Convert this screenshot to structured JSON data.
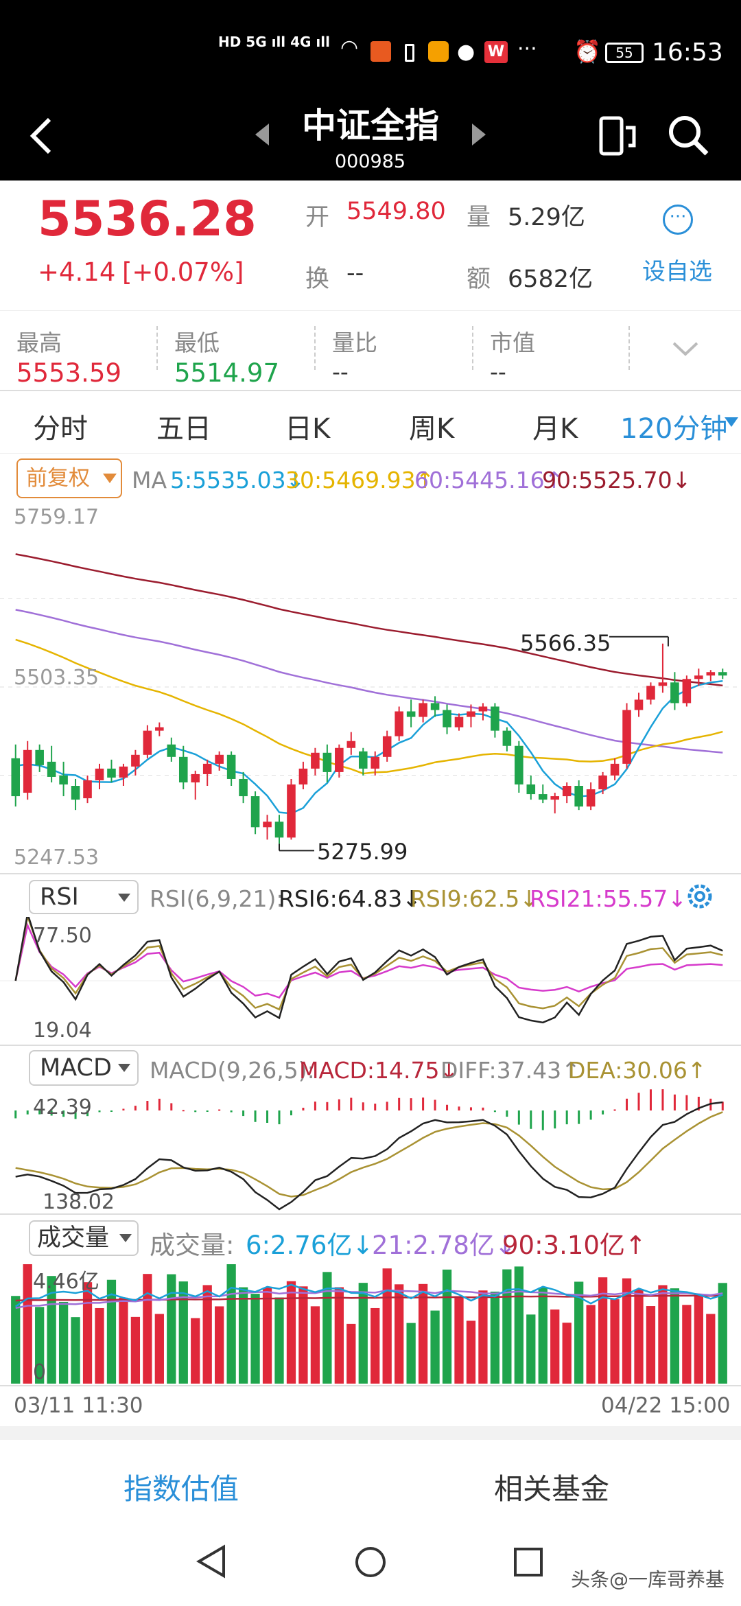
{
  "status_bar": {
    "network": "HD 5G 4G",
    "battery": "55",
    "time": "16:53"
  },
  "header": {
    "title": "中证全指",
    "code": "000985"
  },
  "quote": {
    "price": "5536.28",
    "change": "+4.14",
    "change_pct": "[+0.07%]",
    "open_label": "开",
    "open": "5549.80",
    "volume_label": "量",
    "volume": "5.29亿",
    "turnover_label": "换",
    "turnover": "--",
    "amount_label": "额",
    "amount": "6582亿",
    "watch_label": "设自选"
  },
  "stats": {
    "high_label": "最高",
    "high": "5553.59",
    "low_label": "最低",
    "low": "5514.97",
    "ratio_label": "量比",
    "ratio": "--",
    "mcap_label": "市值",
    "mcap": "--"
  },
  "tabs": [
    "分时",
    "五日",
    "日K",
    "周K",
    "月K",
    "120分钟"
  ],
  "ma": {
    "adjust": "前复权",
    "label": "MA",
    "ma5": "5:5535.03↓",
    "ma30": "30:5469.93↑",
    "ma60": "60:5445.16↑",
    "ma90": "90:5525.70↓",
    "axis_top": "5759.17",
    "axis_mid": "5503.35",
    "axis_bot": "5247.53",
    "annot_high": "5566.35",
    "annot_low": "5275.99"
  },
  "rsi": {
    "selector": "RSI",
    "params": "RSI(6,9,21):",
    "rsi6": "RSI6:64.83↓",
    "rsi9": "RSI9:62.5↓",
    "rsi21": "RSI21:55.57↓",
    "axis_top": "77.50",
    "axis_bot": "19.04"
  },
  "macd": {
    "selector": "MACD",
    "params": "MACD(9,26,5):",
    "macd": "MACD:14.75↓",
    "diff": "DIFF:37.43↑",
    "dea": "DEA:30.06↑",
    "axis_top": "42.39",
    "axis_bot": "138.02"
  },
  "vol": {
    "selector": "成交量",
    "label": "成交量:",
    "v6": "6:2.76亿↓",
    "v21": "21:2.78亿↓",
    "v90": "90:3.10亿↑",
    "axis_top": "4.46亿",
    "axis_bot": "0"
  },
  "time_axis": {
    "start": "03/11 11:30",
    "end": "04/22 15:00"
  },
  "bottom_actions": {
    "valuation": "指数估值",
    "funds": "相关基金"
  },
  "watermark": "头条@一库哥养基",
  "colors": {
    "up": "#e0283a",
    "down": "#1fa44c",
    "ma5": "#1aa0d8",
    "ma30": "#e5b400",
    "ma60": "#a070d8",
    "ma90": "#9b1c2e",
    "accent": "#2a8fd8"
  },
  "chart_data": [
    {
      "type": "candlestick",
      "title": "中证全指 120分钟K",
      "ylim": [
        5247.53,
        5759.17
      ],
      "x": [
        "03/11 11:30",
        "04/22 15:00"
      ],
      "ohlc": [
        [
          5400,
          5420,
          5330,
          5345
        ],
        [
          5350,
          5425,
          5340,
          5412
        ],
        [
          5412,
          5420,
          5380,
          5390
        ],
        [
          5395,
          5418,
          5365,
          5373
        ],
        [
          5375,
          5395,
          5345,
          5362
        ],
        [
          5360,
          5370,
          5325,
          5340
        ],
        [
          5342,
          5375,
          5335,
          5368
        ],
        [
          5368,
          5392,
          5355,
          5385
        ],
        [
          5385,
          5398,
          5365,
          5372
        ],
        [
          5372,
          5392,
          5360,
          5388
        ],
        [
          5388,
          5412,
          5375,
          5405
        ],
        [
          5405,
          5448,
          5400,
          5440
        ],
        [
          5440,
          5452,
          5432,
          5445
        ],
        [
          5420,
          5430,
          5395,
          5402
        ],
        [
          5402,
          5418,
          5355,
          5365
        ],
        [
          5365,
          5382,
          5340,
          5377
        ],
        [
          5377,
          5398,
          5360,
          5392
        ],
        [
          5392,
          5410,
          5382,
          5405
        ],
        [
          5405,
          5410,
          5360,
          5370
        ],
        [
          5370,
          5380,
          5335,
          5345
        ],
        [
          5345,
          5352,
          5290,
          5300
        ],
        [
          5300,
          5318,
          5282,
          5308
        ],
        [
          5308,
          5318,
          5275.99,
          5285
        ],
        [
          5285,
          5370,
          5282,
          5362
        ],
        [
          5362,
          5395,
          5355,
          5385
        ],
        [
          5385,
          5415,
          5375,
          5408
        ],
        [
          5408,
          5420,
          5365,
          5380
        ],
        [
          5380,
          5420,
          5372,
          5415
        ],
        [
          5415,
          5438,
          5405,
          5425
        ],
        [
          5410,
          5415,
          5375,
          5385
        ],
        [
          5385,
          5410,
          5375,
          5402
        ],
        [
          5402,
          5440,
          5395,
          5432
        ],
        [
          5432,
          5475,
          5425,
          5468
        ],
        [
          5468,
          5485,
          5445,
          5460
        ],
        [
          5460,
          5485,
          5452,
          5480
        ],
        [
          5480,
          5490,
          5460,
          5470
        ],
        [
          5470,
          5478,
          5435,
          5445
        ],
        [
          5445,
          5465,
          5440,
          5460
        ],
        [
          5460,
          5478,
          5445,
          5468
        ],
        [
          5468,
          5480,
          5455,
          5475
        ],
        [
          5475,
          5480,
          5430,
          5440
        ],
        [
          5440,
          5445,
          5410,
          5418
        ],
        [
          5418,
          5425,
          5350,
          5362
        ],
        [
          5362,
          5375,
          5340,
          5348
        ],
        [
          5348,
          5362,
          5335,
          5340
        ],
        [
          5340,
          5350,
          5320,
          5345
        ],
        [
          5345,
          5365,
          5335,
          5360
        ],
        [
          5360,
          5368,
          5325,
          5330
        ],
        [
          5330,
          5365,
          5325,
          5355
        ],
        [
          5355,
          5380,
          5348,
          5375
        ],
        [
          5375,
          5400,
          5368,
          5392
        ],
        [
          5392,
          5480,
          5385,
          5470
        ],
        [
          5470,
          5495,
          5460,
          5485
        ],
        [
          5485,
          5510,
          5478,
          5505
        ],
        [
          5505,
          5566.35,
          5495,
          5510
        ],
        [
          5510,
          5525,
          5470,
          5480
        ],
        [
          5480,
          5520,
          5475,
          5515
        ],
        [
          5515,
          5530,
          5505,
          5520
        ],
        [
          5520,
          5528,
          5512,
          5525
        ],
        [
          5525,
          5530,
          5515,
          5520
        ]
      ]
    },
    {
      "type": "line",
      "title": "RSI",
      "series": [
        {
          "name": "RSI6"
        },
        {
          "name": "RSI9"
        },
        {
          "name": "RSI21"
        }
      ],
      "ylim": [
        19.04,
        77.5
      ]
    },
    {
      "type": "bar",
      "title": "MACD",
      "series": [
        {
          "name": "MACD"
        },
        {
          "name": "DIFF"
        },
        {
          "name": "DEA"
        }
      ]
    },
    {
      "type": "bar",
      "title": "成交量",
      "ylim": [
        0,
        4.46
      ]
    }
  ]
}
